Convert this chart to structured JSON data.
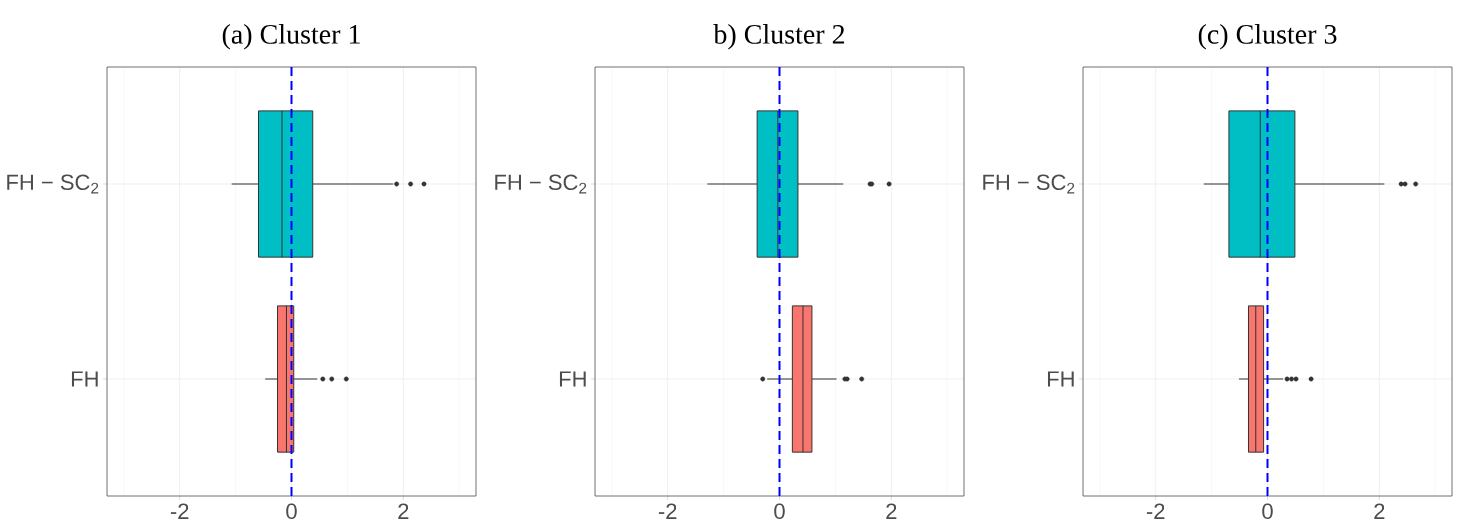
{
  "chart_data": [
    {
      "type": "box",
      "title": "(a) Cluster 1",
      "orientation": "horizontal",
      "categories": [
        "FH − SC$_{2}$",
        "FH"
      ],
      "colors": [
        "#00bfc4",
        "#f8766d"
      ],
      "boxes": [
        {
          "low": -1.07,
          "q1": -0.59,
          "median": -0.17,
          "q3": 0.38,
          "high": 1.82,
          "outliers": [
            1.88,
            2.13,
            2.37
          ]
        },
        {
          "low": -0.47,
          "q1": -0.25,
          "median": -0.09,
          "q3": 0.04,
          "high": 0.46,
          "outliers": [
            0.56,
            0.72,
            0.98
          ]
        }
      ],
      "xlim": [
        -3.3,
        3.3
      ],
      "xticks": [
        -2,
        0,
        2
      ],
      "grid": true,
      "ref_lines": [
        {
          "axis": "x",
          "value": 0,
          "color": "#0000ff",
          "line_style": "dashed"
        }
      ]
    },
    {
      "type": "box",
      "title": "b) Cluster 2",
      "orientation": "horizontal",
      "categories": [
        "FH − SC$_{2}$",
        "FH"
      ],
      "colors": [
        "#00bfc4",
        "#f8766d"
      ],
      "boxes": [
        {
          "low": -1.29,
          "q1": -0.4,
          "median": -0.03,
          "q3": 0.33,
          "high": 1.14,
          "outliers": [
            1.62,
            1.65,
            1.96
          ]
        },
        {
          "low": -0.22,
          "q1": 0.23,
          "median": 0.42,
          "q3": 0.58,
          "high": 1.02,
          "outliers": [
            -0.3,
            1.17,
            1.21,
            1.47
          ]
        }
      ],
      "xlim": [
        -3.3,
        3.3
      ],
      "xticks": [
        -2,
        0,
        2
      ],
      "grid": true,
      "ref_lines": [
        {
          "axis": "x",
          "value": 0,
          "color": "#0000ff",
          "line_style": "dashed"
        }
      ]
    },
    {
      "type": "box",
      "title": "(c) Cluster 3",
      "orientation": "horizontal",
      "categories": [
        "FH − SC$_{2}$",
        "FH"
      ],
      "colors": [
        "#00bfc4",
        "#f8766d"
      ],
      "boxes": [
        {
          "low": -1.14,
          "q1": -0.69,
          "median": -0.13,
          "q3": 0.49,
          "high": 2.09,
          "outliers": [
            2.39,
            2.46,
            2.65
          ]
        },
        {
          "low": -0.51,
          "q1": -0.34,
          "median": -0.21,
          "q3": -0.07,
          "high": 0.28,
          "outliers": [
            0.35,
            0.43,
            0.51,
            0.78
          ]
        }
      ],
      "xlim": [
        -3.3,
        3.3
      ],
      "xticks": [
        -2,
        0,
        2
      ],
      "grid": true,
      "ref_lines": [
        {
          "axis": "x",
          "value": 0,
          "color": "#0000ff",
          "line_style": "dashed"
        }
      ]
    }
  ]
}
